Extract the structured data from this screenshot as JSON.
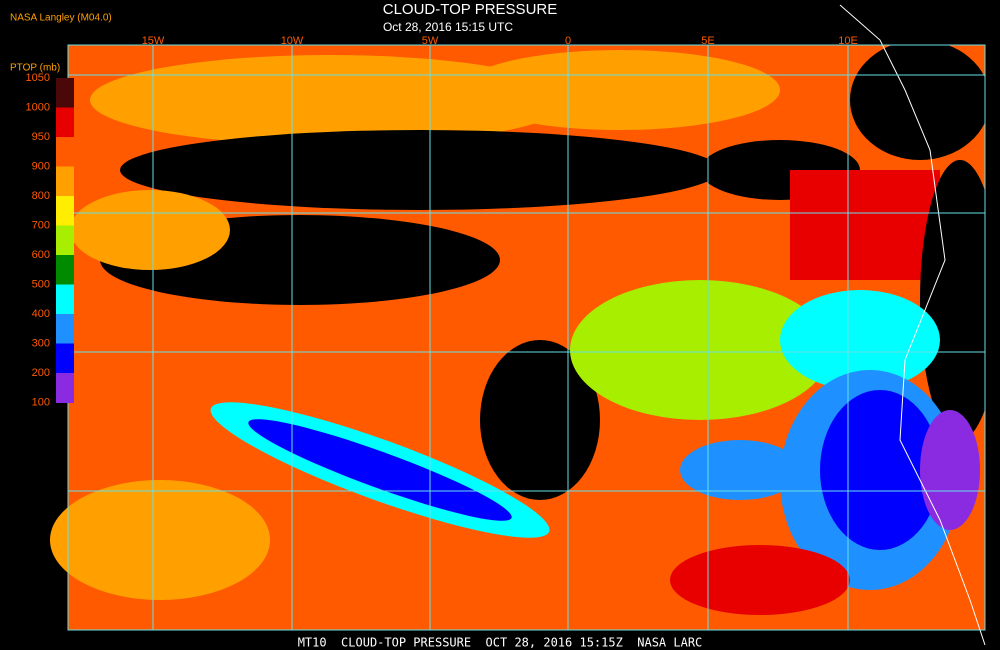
{
  "header": {
    "source": "NASA Langley (M04.0)",
    "title": "CLOUD-TOP PRESSURE",
    "subtitle": "Oct 28, 2016 15:15 UTC"
  },
  "longitude_labels": [
    "15W",
    "10W",
    "5W",
    "0",
    "5E",
    "10E"
  ],
  "legend": {
    "title": "PTOP (mb)",
    "ticks": [
      1050,
      1000,
      950,
      900,
      800,
      700,
      600,
      500,
      400,
      300,
      200,
      100
    ],
    "colors": [
      "#4a0808",
      "#e80000",
      "#ff5a00",
      "#ffa000",
      "#ffee00",
      "#a8ee00",
      "#008a00",
      "#00ffff",
      "#1e90ff",
      "#0000ff",
      "#8a2be2"
    ]
  },
  "footer": "MT10  CLOUD-TOP PRESSURE  OCT 28, 2016 15:15Z  NASA LARC"
}
